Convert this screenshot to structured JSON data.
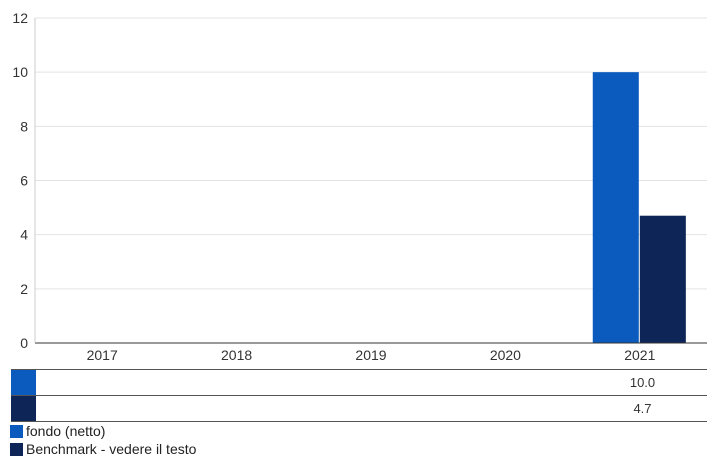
{
  "chart_data": {
    "type": "bar",
    "categories": [
      "2017",
      "2018",
      "2019",
      "2020",
      "2021"
    ],
    "series": [
      {
        "name": "fondo (netto)",
        "color": "#0a5bbd",
        "values": [
          null,
          null,
          null,
          null,
          10.0
        ]
      },
      {
        "name": "Benchmark - vedere il testo",
        "color": "#0d2657",
        "values": [
          null,
          null,
          null,
          null,
          4.7
        ]
      }
    ],
    "ylim": [
      0,
      12
    ],
    "yticks": [
      "0",
      "2",
      "4",
      "6",
      "8",
      "10",
      "12"
    ],
    "grid": true,
    "table_rows": [
      [
        "",
        "",
        "",
        "",
        "10.0"
      ],
      [
        "",
        "",
        "",
        "",
        "4.7"
      ]
    ],
    "legend_position": "bottom-left"
  }
}
